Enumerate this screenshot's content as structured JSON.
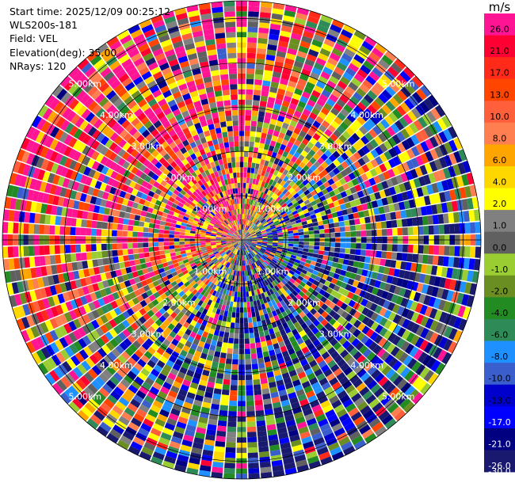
{
  "info": {
    "start_time": "Start time: 2025/12/09 00:25:12",
    "station": "WLS200s-181",
    "field": "Field: VEL",
    "elevation": "Elevation(deg): 35.00",
    "nrays": "NRays: 120"
  },
  "chart_data": {
    "type": "heatmap",
    "projection": "polar-ppi",
    "field": "VEL",
    "elevation_deg": 35.0,
    "nrays": 120,
    "ring_labels": [
      "1.00km",
      "2.00km",
      "3.00km",
      "4.00km",
      "5.00km"
    ],
    "ring_ranges_km": [
      1,
      2,
      3,
      4,
      5
    ],
    "max_range_km": 5.4,
    "colorbar": {
      "unit_label": "m/s",
      "tick_labels": [
        "26.0",
        "21.0",
        "17.0",
        "13.0",
        "10.0",
        "8.0",
        "6.0",
        "4.0",
        "2.0",
        "1.0",
        "0.0",
        "-1.0",
        "-2.0",
        "-4.0",
        "-6.0",
        "-8.0",
        "-10.0",
        "-13.0",
        "-17.0",
        "-21.0",
        "-26.0",
        "-30.0"
      ],
      "colors": [
        "#ff1493",
        "#ff0033",
        "#ff2a1a",
        "#ff4500",
        "#ff5f3a",
        "#ff7f50",
        "#ffa500",
        "#ffd700",
        "#ffff00",
        "#808080",
        "#606060",
        "#9acd32",
        "#6b8e23",
        "#228b22",
        "#2e8b57",
        "#1e90ff",
        "#3a5fcd",
        "#0000cd",
        "#0000ff",
        "#000080",
        "#191970"
      ]
    }
  }
}
